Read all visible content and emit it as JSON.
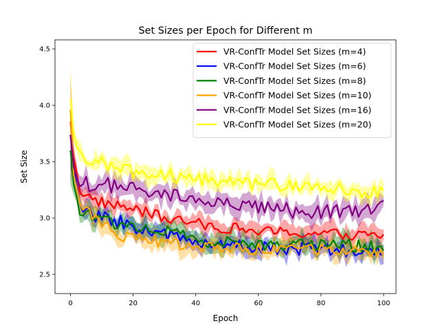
{
  "chart_data": {
    "type": "line",
    "title": "Set Sizes per Epoch for Different m",
    "xlabel": "Epoch",
    "ylabel": "Set Size",
    "xlim": [
      -4.95,
      103.95
    ],
    "ylim": [
      2.33,
      4.58
    ],
    "xticks": [
      0,
      20,
      40,
      60,
      80,
      100
    ],
    "yticks": [
      2.5,
      3.0,
      3.5,
      4.0,
      4.5
    ],
    "legend_position": "top-right",
    "grid": false,
    "band_opacity": 0.35,
    "series": [
      {
        "name": "VR-ConfTr Model Set Sizes (m=4)",
        "color": "#ff0000",
        "anchors": [
          [
            0,
            3.85
          ],
          [
            1,
            3.55
          ],
          [
            3,
            3.25
          ],
          [
            6,
            3.18
          ],
          [
            10,
            3.14
          ],
          [
            20,
            3.08
          ],
          [
            30,
            3.0
          ],
          [
            40,
            2.95
          ],
          [
            60,
            2.88
          ],
          [
            80,
            2.86
          ],
          [
            100,
            2.84
          ]
        ],
        "band": 0.07,
        "noise": 0.05,
        "band_first": 0.55
      },
      {
        "name": "VR-ConfTr Model Set Sizes (m=6)",
        "color": "#0000ff",
        "anchors": [
          [
            0,
            3.75
          ],
          [
            1,
            3.45
          ],
          [
            3,
            3.1
          ],
          [
            8,
            3.02
          ],
          [
            15,
            2.97
          ],
          [
            25,
            2.88
          ],
          [
            40,
            2.8
          ],
          [
            60,
            2.74
          ],
          [
            80,
            2.72
          ],
          [
            100,
            2.68
          ]
        ],
        "band": 0.07,
        "noise": 0.06,
        "band_first": 0.3
      },
      {
        "name": "VR-ConfTr Model Set Sizes (m=8)",
        "color": "#008000",
        "anchors": [
          [
            0,
            3.6
          ],
          [
            1,
            3.3
          ],
          [
            3,
            3.05
          ],
          [
            10,
            2.98
          ],
          [
            20,
            2.93
          ],
          [
            30,
            2.88
          ],
          [
            45,
            2.78
          ],
          [
            60,
            2.77
          ],
          [
            80,
            2.77
          ],
          [
            100,
            2.74
          ]
        ],
        "band": 0.08,
        "noise": 0.06,
        "band_first": 0.3
      },
      {
        "name": "VR-ConfTr Model Set Sizes (m=10)",
        "color": "#ffa500",
        "anchors": [
          [
            0,
            3.95
          ],
          [
            1,
            3.4
          ],
          [
            3,
            3.1
          ],
          [
            8,
            3.0
          ],
          [
            15,
            2.85
          ],
          [
            25,
            2.8
          ],
          [
            40,
            2.75
          ],
          [
            60,
            2.72
          ],
          [
            80,
            2.72
          ],
          [
            100,
            2.7
          ]
        ],
        "band": 0.07,
        "noise": 0.05,
        "band_first": 0.35
      },
      {
        "name": "VR-ConfTr Model Set Sizes (m=16)",
        "color": "#800080",
        "anchors": [
          [
            0,
            3.75
          ],
          [
            1,
            3.45
          ],
          [
            3,
            3.3
          ],
          [
            10,
            3.3
          ],
          [
            20,
            3.25
          ],
          [
            30,
            3.2
          ],
          [
            40,
            3.15
          ],
          [
            60,
            3.08
          ],
          [
            80,
            3.05
          ],
          [
            100,
            3.1
          ]
        ],
        "band": 0.08,
        "noise": 0.07,
        "band_first": 0.3
      },
      {
        "name": "VR-ConfTr Model Set Sizes (m=20)",
        "color": "#ffff00",
        "anchors": [
          [
            0,
            4.05
          ],
          [
            1,
            3.75
          ],
          [
            3,
            3.55
          ],
          [
            10,
            3.5
          ],
          [
            20,
            3.4
          ],
          [
            30,
            3.38
          ],
          [
            40,
            3.35
          ],
          [
            60,
            3.3
          ],
          [
            80,
            3.27
          ],
          [
            100,
            3.22
          ]
        ],
        "band": 0.07,
        "noise": 0.06,
        "band_first": 0.4
      }
    ]
  }
}
